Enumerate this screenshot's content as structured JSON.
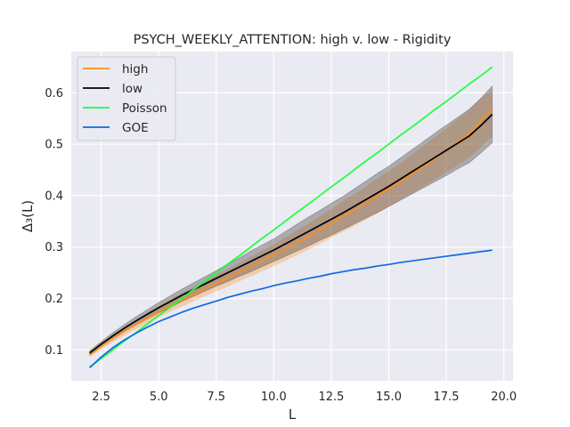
{
  "chart_data": {
    "type": "line",
    "title": "PSYCH_WEEKLY_ATTENTION: high v. low - Rigidity",
    "xlabel": "L",
    "ylabel": "Δ₃(L)",
    "xlim": [
      1.2,
      20.4
    ],
    "ylim": [
      0.04,
      0.68
    ],
    "xticks": [
      2.5,
      5.0,
      7.5,
      10.0,
      12.5,
      15.0,
      17.5,
      20.0
    ],
    "xtick_labels": [
      "2.5",
      "5.0",
      "7.5",
      "10.0",
      "12.5",
      "15.0",
      "17.5",
      "20.0"
    ],
    "yticks": [
      0.1,
      0.2,
      0.3,
      0.4,
      0.5,
      0.6
    ],
    "ytick_labels": [
      "0.1",
      "0.2",
      "0.3",
      "0.4",
      "0.5",
      "0.6"
    ],
    "grid": true,
    "legend_position": "top-left",
    "x": [
      2.0,
      2.5,
      3.0,
      3.5,
      4.0,
      4.5,
      5.0,
      5.5,
      6.0,
      6.5,
      7.0,
      7.5,
      8.0,
      8.5,
      9.0,
      9.5,
      10.0,
      10.5,
      11.0,
      11.5,
      12.0,
      12.5,
      13.0,
      13.5,
      14.0,
      14.5,
      15.0,
      15.5,
      16.0,
      16.5,
      17.0,
      17.5,
      18.0,
      18.5,
      19.0,
      19.5
    ],
    "series": [
      {
        "name": "high",
        "color": "#ff8c1a",
        "values": [
          0.09,
          0.107,
          0.122,
          0.136,
          0.149,
          0.162,
          0.174,
          0.186,
          0.197,
          0.208,
          0.219,
          0.23,
          0.24,
          0.251,
          0.262,
          0.273,
          0.284,
          0.296,
          0.308,
          0.32,
          0.333,
          0.346,
          0.359,
          0.372,
          0.385,
          0.399,
          0.413,
          0.427,
          0.442,
          0.457,
          0.472,
          0.488,
          0.504,
          0.52,
          0.545,
          0.57
        ],
        "band_low": [
          0.086,
          0.101,
          0.115,
          0.128,
          0.14,
          0.152,
          0.163,
          0.174,
          0.184,
          0.194,
          0.204,
          0.214,
          0.223,
          0.233,
          0.243,
          0.253,
          0.263,
          0.273,
          0.284,
          0.295,
          0.306,
          0.318,
          0.329,
          0.341,
          0.353,
          0.365,
          0.378,
          0.391,
          0.404,
          0.417,
          0.431,
          0.445,
          0.459,
          0.474,
          0.494,
          0.515
        ],
        "band_high": [
          0.094,
          0.113,
          0.129,
          0.144,
          0.158,
          0.172,
          0.185,
          0.198,
          0.21,
          0.222,
          0.234,
          0.246,
          0.257,
          0.269,
          0.281,
          0.293,
          0.305,
          0.319,
          0.332,
          0.345,
          0.36,
          0.374,
          0.389,
          0.403,
          0.417,
          0.433,
          0.448,
          0.463,
          0.48,
          0.497,
          0.513,
          0.531,
          0.549,
          0.566,
          0.59,
          0.605
        ]
      },
      {
        "name": "low",
        "color": "#000000",
        "values": [
          0.094,
          0.111,
          0.127,
          0.142,
          0.156,
          0.169,
          0.182,
          0.194,
          0.206,
          0.217,
          0.228,
          0.239,
          0.25,
          0.261,
          0.272,
          0.283,
          0.294,
          0.306,
          0.318,
          0.33,
          0.342,
          0.354,
          0.366,
          0.379,
          0.392,
          0.405,
          0.418,
          0.432,
          0.446,
          0.46,
          0.474,
          0.488,
          0.502,
          0.516,
          0.536,
          0.558
        ],
        "band_low": [
          0.09,
          0.106,
          0.121,
          0.135,
          0.148,
          0.16,
          0.172,
          0.183,
          0.194,
          0.204,
          0.214,
          0.224,
          0.233,
          0.243,
          0.252,
          0.262,
          0.272,
          0.282,
          0.292,
          0.302,
          0.313,
          0.323,
          0.334,
          0.345,
          0.356,
          0.367,
          0.379,
          0.391,
          0.403,
          0.415,
          0.427,
          0.439,
          0.452,
          0.464,
          0.483,
          0.503
        ],
        "band_high": [
          0.098,
          0.116,
          0.133,
          0.149,
          0.164,
          0.178,
          0.192,
          0.205,
          0.218,
          0.23,
          0.242,
          0.254,
          0.267,
          0.279,
          0.292,
          0.304,
          0.316,
          0.33,
          0.344,
          0.358,
          0.371,
          0.385,
          0.398,
          0.413,
          0.428,
          0.443,
          0.457,
          0.473,
          0.489,
          0.505,
          0.521,
          0.537,
          0.552,
          0.568,
          0.589,
          0.613
        ]
      },
      {
        "name": "Poisson",
        "color": "#1aff40",
        "values": [
          0.067,
          0.083,
          0.1,
          0.117,
          0.133,
          0.15,
          0.167,
          0.183,
          0.2,
          0.217,
          0.233,
          0.25,
          0.267,
          0.283,
          0.3,
          0.317,
          0.333,
          0.35,
          0.367,
          0.383,
          0.4,
          0.417,
          0.433,
          0.45,
          0.467,
          0.483,
          0.5,
          0.517,
          0.533,
          0.55,
          0.567,
          0.583,
          0.6,
          0.617,
          0.633,
          0.65
        ]
      },
      {
        "name": "GOE",
        "color": "#0d6be0",
        "values": [
          0.065,
          0.086,
          0.104,
          0.119,
          0.132,
          0.144,
          0.155,
          0.164,
          0.173,
          0.181,
          0.188,
          0.195,
          0.202,
          0.208,
          0.214,
          0.219,
          0.225,
          0.23,
          0.234,
          0.239,
          0.243,
          0.248,
          0.252,
          0.256,
          0.259,
          0.263,
          0.266,
          0.27,
          0.273,
          0.276,
          0.279,
          0.282,
          0.285,
          0.288,
          0.291,
          0.294
        ]
      }
    ]
  }
}
